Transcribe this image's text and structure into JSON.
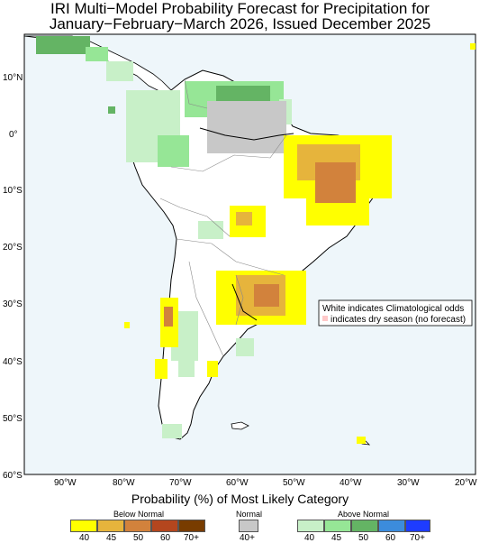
{
  "title_line1": "IRI Multi−Model Probability Forecast for Precipitation for",
  "title_line2": "January−February−March 2026, Issued December 2025",
  "lat_labels": [
    "10°N",
    "0°",
    "10°S",
    "20°S",
    "30°S",
    "40°S",
    "50°S",
    "60°S"
  ],
  "lon_labels": [
    "90°W",
    "80°W",
    "70°W",
    "60°W",
    "50°W",
    "40°W",
    "30°W",
    "20°W"
  ],
  "note_line1": "White indicates Climatological odds",
  "note_line2": "indicates dry season (no forecast)",
  "legend": {
    "title": "Probability (%) of Most Likely Category",
    "below": {
      "name": "Below Normal",
      "ticks": [
        "40",
        "45",
        "50",
        "60",
        "70+"
      ],
      "colors": [
        "#ffff00",
        "#e6b43c",
        "#d2823c",
        "#b4461e",
        "#783c00"
      ]
    },
    "normal": {
      "name": "Normal",
      "ticks": [
        "40+"
      ],
      "colors": [
        "#c8c8c8"
      ]
    },
    "above": {
      "name": "Above Normal",
      "ticks": [
        "40",
        "45",
        "50",
        "60",
        "70+"
      ],
      "colors": [
        "#c8f0c8",
        "#96e696",
        "#64b464",
        "#3c8cdc",
        "#1e3cff"
      ]
    },
    "dry_season_color": "#ffc8c8",
    "ocean_color": "#eef6fa"
  }
}
